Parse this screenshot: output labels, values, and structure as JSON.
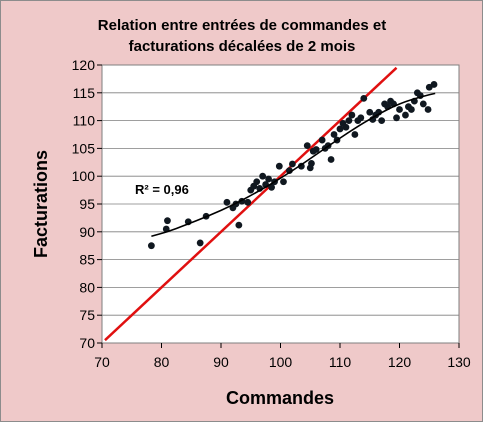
{
  "chart_data": {
    "type": "scatter",
    "title": [
      "Relation entre entrées de commandes et",
      "facturations décalées de 2 mois"
    ],
    "xlabel": "Commandes",
    "ylabel": "Facturations",
    "xlim": [
      70,
      130
    ],
    "ylim": [
      70,
      120
    ],
    "x_ticks": [
      "70",
      "80",
      "90",
      "100",
      "110",
      "120",
      "130"
    ],
    "y_ticks": [
      "70",
      "75",
      "80",
      "85",
      "90",
      "95",
      "100",
      "105",
      "110",
      "115",
      "120"
    ],
    "grid": true,
    "annotation": "R² = 0,96",
    "colors": {
      "background": "#efc9c9",
      "plot": "#ffffff",
      "points": "#101820",
      "identity_line": "#e01010",
      "fit_curve": "#000000",
      "grid": "#7f7f7f"
    },
    "points": [
      {
        "x": 78.3,
        "y": 87.5
      },
      {
        "x": 80.8,
        "y": 90.5
      },
      {
        "x": 81.0,
        "y": 92.0
      },
      {
        "x": 84.5,
        "y": 91.8
      },
      {
        "x": 86.5,
        "y": 88.0
      },
      {
        "x": 87.5,
        "y": 92.8
      },
      {
        "x": 91.0,
        "y": 95.3
      },
      {
        "x": 92.0,
        "y": 94.3
      },
      {
        "x": 92.5,
        "y": 95.0
      },
      {
        "x": 93.0,
        "y": 91.2
      },
      {
        "x": 93.5,
        "y": 95.5
      },
      {
        "x": 94.5,
        "y": 95.3
      },
      {
        "x": 95.0,
        "y": 97.5
      },
      {
        "x": 95.5,
        "y": 98.2
      },
      {
        "x": 96.0,
        "y": 99.0
      },
      {
        "x": 96.5,
        "y": 97.8
      },
      {
        "x": 97.0,
        "y": 100.0
      },
      {
        "x": 97.5,
        "y": 98.5
      },
      {
        "x": 98.0,
        "y": 99.5
      },
      {
        "x": 98.5,
        "y": 98.0
      },
      {
        "x": 99.0,
        "y": 99.0
      },
      {
        "x": 99.8,
        "y": 101.8
      },
      {
        "x": 100.5,
        "y": 99.0
      },
      {
        "x": 101.5,
        "y": 101.0
      },
      {
        "x": 102.0,
        "y": 102.2
      },
      {
        "x": 103.5,
        "y": 101.8
      },
      {
        "x": 104.5,
        "y": 105.5
      },
      {
        "x": 105.0,
        "y": 101.5
      },
      {
        "x": 105.2,
        "y": 102.3
      },
      {
        "x": 105.5,
        "y": 104.5
      },
      {
        "x": 106.0,
        "y": 104.8
      },
      {
        "x": 107.0,
        "y": 106.5
      },
      {
        "x": 107.5,
        "y": 105.0
      },
      {
        "x": 108.0,
        "y": 105.5
      },
      {
        "x": 108.5,
        "y": 103.0
      },
      {
        "x": 109.0,
        "y": 107.5
      },
      {
        "x": 109.5,
        "y": 106.5
      },
      {
        "x": 110.0,
        "y": 108.5
      },
      {
        "x": 110.5,
        "y": 109.5
      },
      {
        "x": 111.0,
        "y": 108.8
      },
      {
        "x": 111.5,
        "y": 110.0
      },
      {
        "x": 112.0,
        "y": 111.0
      },
      {
        "x": 112.5,
        "y": 107.5
      },
      {
        "x": 113.0,
        "y": 110.0
      },
      {
        "x": 113.5,
        "y": 110.5
      },
      {
        "x": 114.0,
        "y": 114.0
      },
      {
        "x": 115.0,
        "y": 111.5
      },
      {
        "x": 115.5,
        "y": 110.2
      },
      {
        "x": 116.0,
        "y": 111.0
      },
      {
        "x": 116.5,
        "y": 111.5
      },
      {
        "x": 117.0,
        "y": 110.0
      },
      {
        "x": 117.5,
        "y": 113.0
      },
      {
        "x": 118.0,
        "y": 112.5
      },
      {
        "x": 118.5,
        "y": 113.5
      },
      {
        "x": 119.0,
        "y": 113.0
      },
      {
        "x": 119.5,
        "y": 110.5
      },
      {
        "x": 120.0,
        "y": 112.0
      },
      {
        "x": 121.0,
        "y": 111.0
      },
      {
        "x": 121.5,
        "y": 112.5
      },
      {
        "x": 122.0,
        "y": 112.0
      },
      {
        "x": 122.5,
        "y": 113.5
      },
      {
        "x": 123.0,
        "y": 115.0
      },
      {
        "x": 123.5,
        "y": 114.5
      },
      {
        "x": 124.0,
        "y": 113.0
      },
      {
        "x": 124.8,
        "y": 112.0
      },
      {
        "x": 125.0,
        "y": 116.0
      },
      {
        "x": 125.8,
        "y": 116.5
      }
    ],
    "identity_line": [
      [
        70.5,
        70.5
      ],
      [
        119.5,
        119.5
      ]
    ],
    "fit_curve": [
      [
        78.3,
        89.2
      ],
      [
        81.0,
        90.0
      ],
      [
        84.0,
        91.2
      ],
      [
        88.0,
        92.9
      ],
      [
        92.0,
        94.8
      ],
      [
        96.0,
        97.1
      ],
      [
        100.0,
        99.6
      ],
      [
        104.0,
        102.4
      ],
      [
        108.0,
        105.4
      ],
      [
        112.0,
        108.3
      ],
      [
        116.0,
        110.9
      ],
      [
        120.0,
        113.1
      ],
      [
        124.0,
        114.4
      ],
      [
        126.0,
        114.9
      ]
    ]
  }
}
